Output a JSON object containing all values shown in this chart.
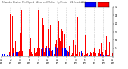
{
  "n_points": 1440,
  "red_color": "#ff0000",
  "blue_color": "#0000ff",
  "background_color": "#ffffff",
  "grid_color": "#999999",
  "ylim": [
    0,
    30
  ],
  "ytick_vals": [
    5,
    10,
    15,
    20,
    25,
    30
  ],
  "figsize": [
    1.6,
    0.87
  ],
  "dpi": 100
}
